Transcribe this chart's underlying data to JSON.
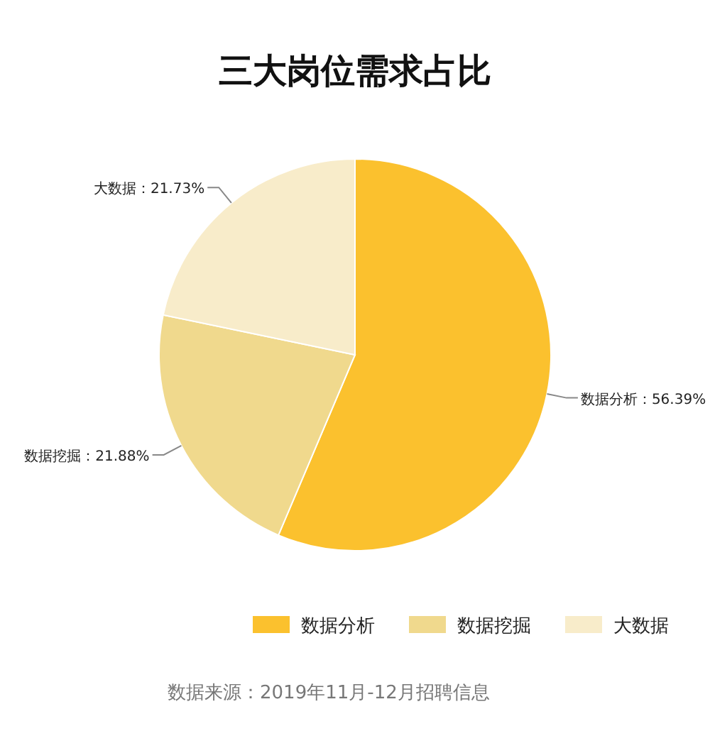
{
  "chart_data": {
    "type": "pie",
    "title": "三大岗位需求占比",
    "categories": [
      "数据分析",
      "数据挖掘",
      "大数据"
    ],
    "values": [
      56.39,
      21.88,
      21.73
    ],
    "colors": [
      "#fbc12e",
      "#f0d98d",
      "#f8ecca"
    ],
    "value_labels": [
      "：56.39%",
      "：21.88%",
      "：21.73%"
    ],
    "legend": "bottom",
    "annotations": [
      "数据来源：2019年11月-12月招聘信息"
    ]
  }
}
